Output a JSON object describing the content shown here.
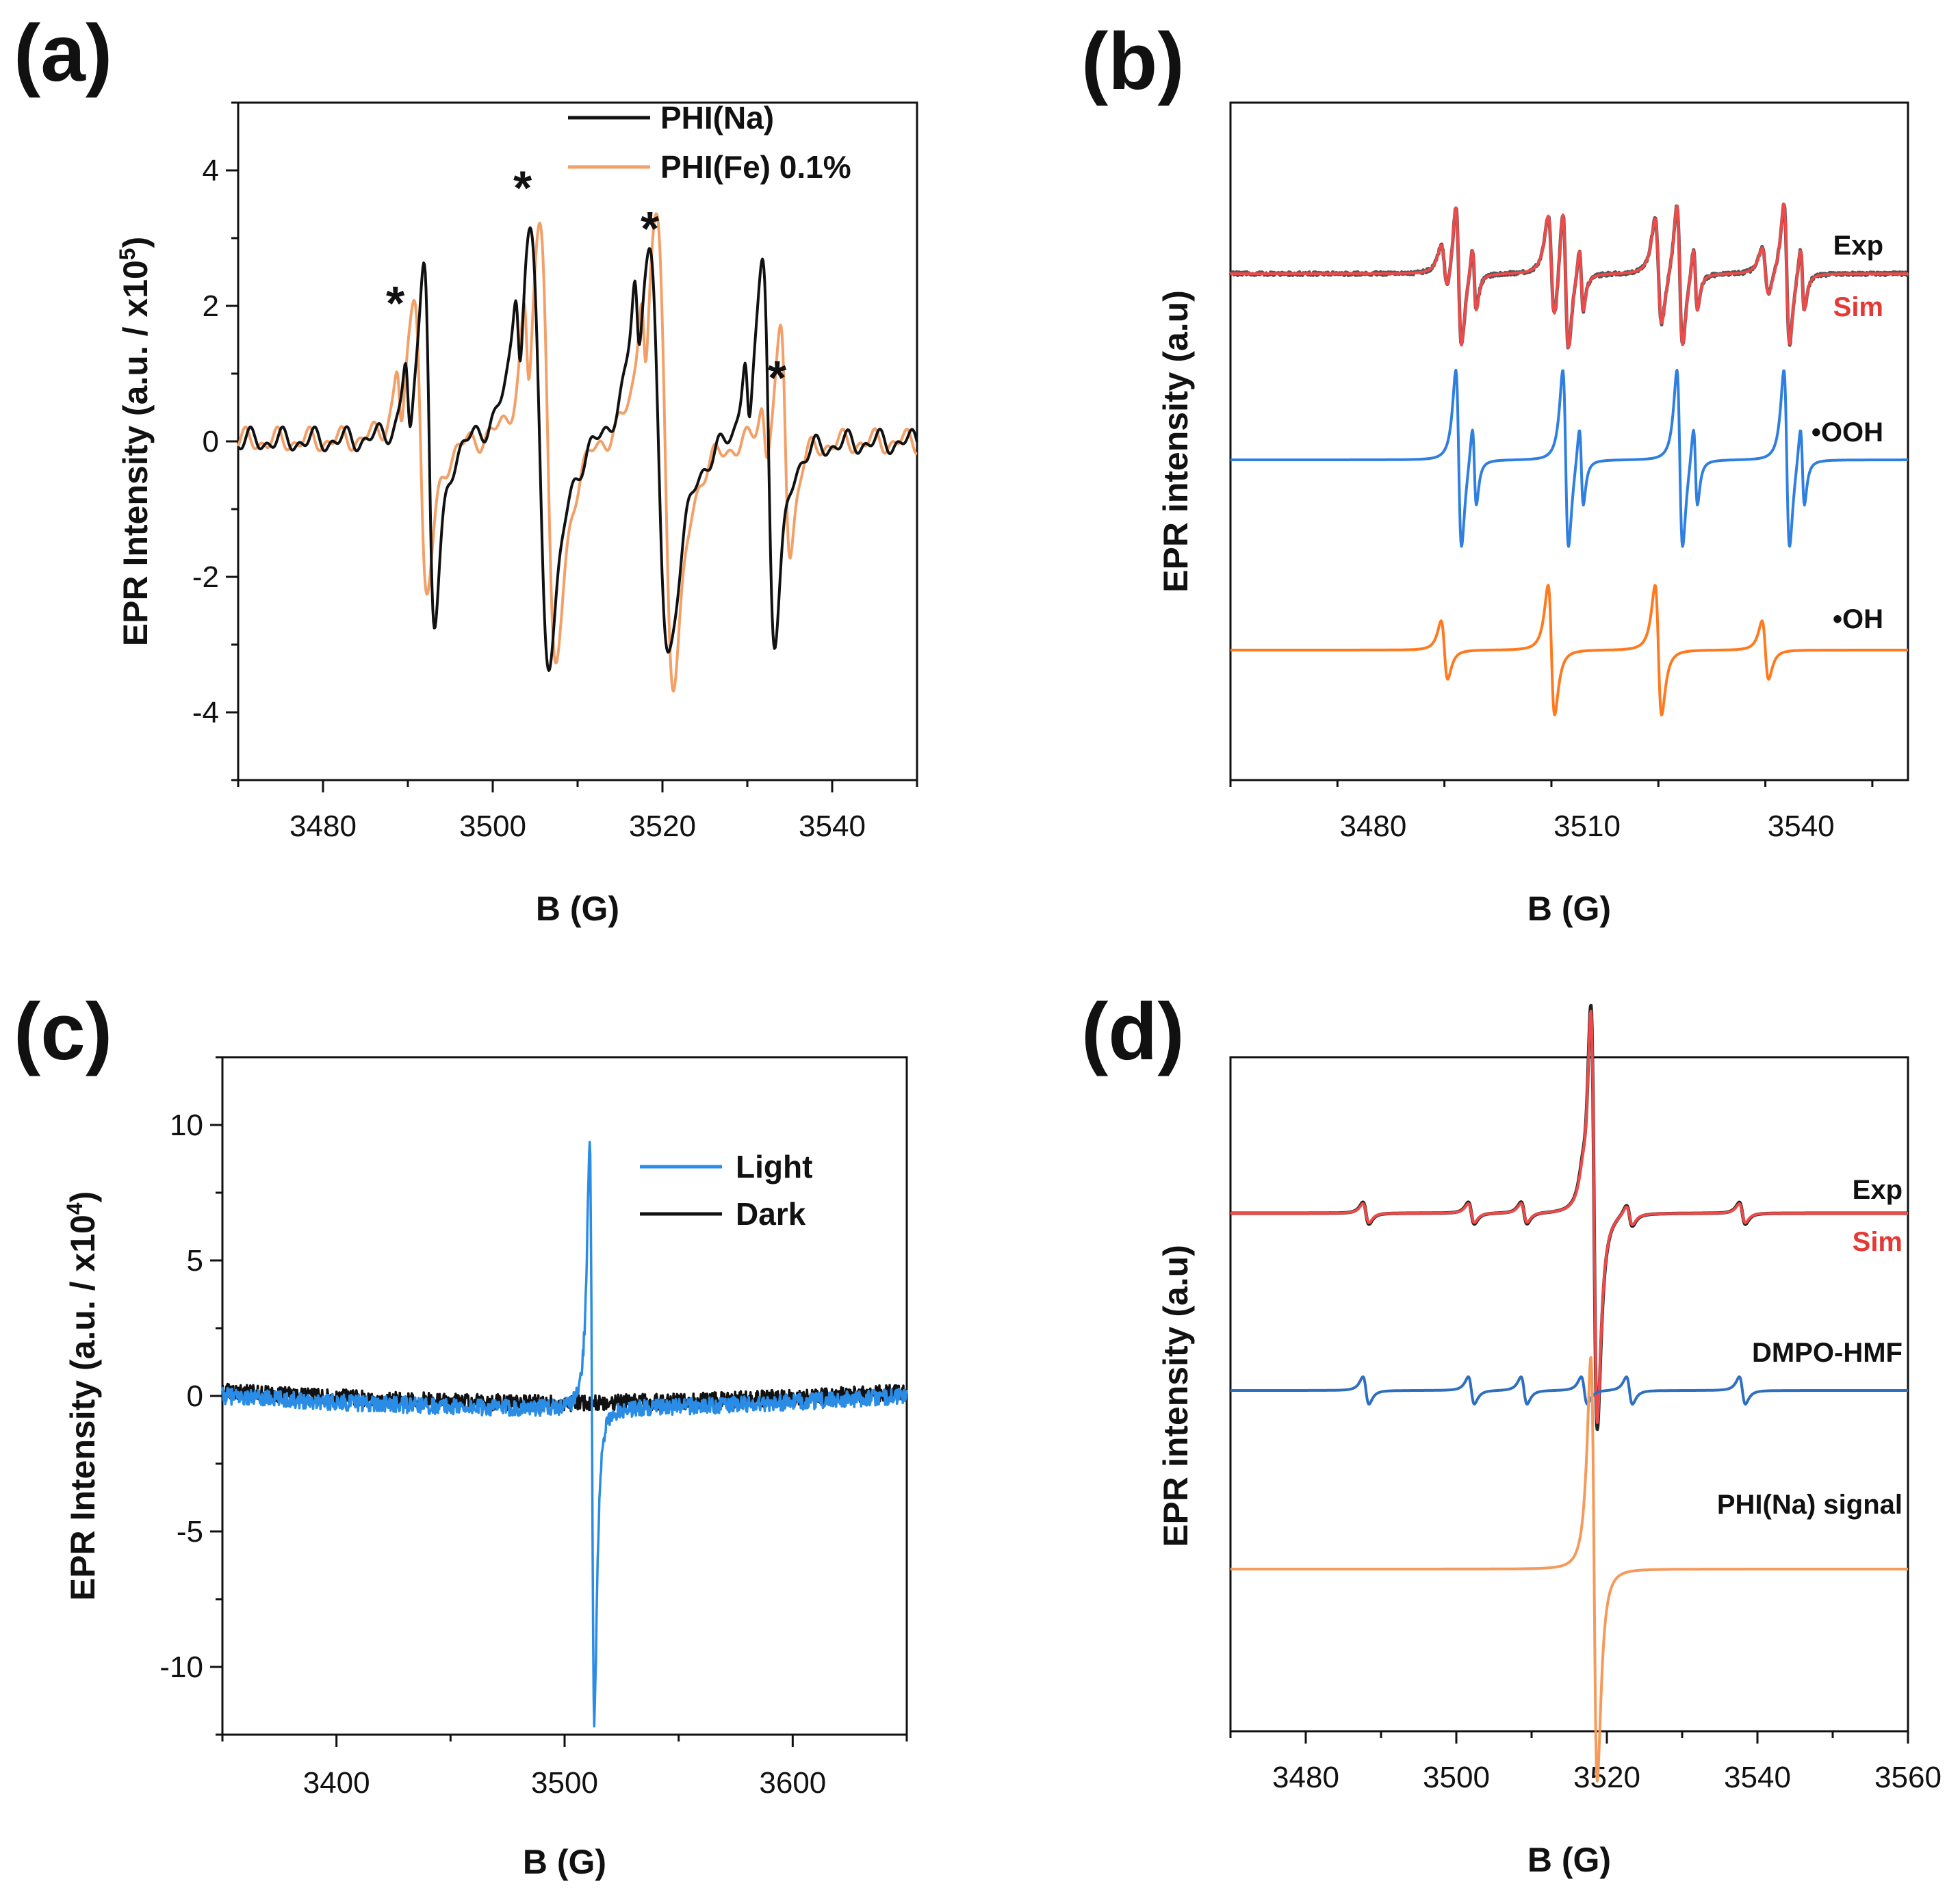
{
  "chart_data": [
    {
      "panel": "(a)",
      "type": "line",
      "xlabel": "B (G)",
      "ylabel_prefix": "EPR Intensity (a.u. / x10",
      "ylabel_exp": "5",
      "ylabel_suffix": ")",
      "xlim": [
        3470,
        3550
      ],
      "ylim": [
        -5,
        5
      ],
      "xticks": [
        3480,
        3500,
        3520,
        3540
      ],
      "yticks": [
        -4,
        -2,
        0,
        2,
        4
      ],
      "legend": "top-right",
      "markers": [
        "*",
        "*",
        "*",
        "*"
      ],
      "marker_fields": [
        3489,
        3504,
        3519,
        3534
      ],
      "series": [
        {
          "name": "PHI(Na)",
          "color": "#111111",
          "peaks": [
            {
              "c": 3492.5,
              "a": 2.8,
              "w": 0.7
            },
            {
              "c": 3505.5,
              "a": 3.2,
              "w": 1.2
            },
            {
              "c": 3519.5,
              "a": 3.1,
              "w": 1.3
            },
            {
              "c": 3532.5,
              "a": 2.9,
              "w": 0.8
            }
          ]
        },
        {
          "name": "PHI(Fe) 0.1%",
          "color": "#f2a068",
          "peaks": [
            {
              "c": 3491.5,
              "a": 2.3,
              "w": 0.8
            },
            {
              "c": 3506.5,
              "a": 3.4,
              "w": 1.0
            },
            {
              "c": 3520.3,
              "a": 3.5,
              "w": 1.1
            },
            {
              "c": 3534.5,
              "a": 1.6,
              "w": 0.6
            }
          ]
        }
      ]
    },
    {
      "panel": "(b)",
      "type": "line",
      "xlabel": "B (G)",
      "ylabel": "EPR intensity (a.u)",
      "xlim": [
        3460,
        3555
      ],
      "xticks": [
        3480,
        3510,
        3540
      ],
      "series": [
        {
          "name": "Exp",
          "label_color": "#111111",
          "color": "#555555"
        },
        {
          "name": "Sim",
          "label_color": "#e53935",
          "color": "#ef4a4a"
        },
        {
          "name": "•OOH",
          "label_color": "#111111",
          "color": "#2f7fe0"
        },
        {
          "name": "•OH",
          "label_color": "#111111",
          "color": "#ff7a1f"
        }
      ]
    },
    {
      "panel": "(c)",
      "type": "line",
      "xlabel": "B (G)",
      "ylabel_prefix": "EPR Intensity (a.u. / x10",
      "ylabel_exp": "4",
      "ylabel_suffix": ")",
      "xlim": [
        3350,
        3650
      ],
      "ylim": [
        -12.5,
        12.5
      ],
      "xticks": [
        3400,
        3500,
        3600
      ],
      "yticks": [
        -10,
        -5,
        0,
        5,
        10
      ],
      "legend": "top-right",
      "series": [
        {
          "name": "Light",
          "color": "#2b8ce6",
          "peak_field": 3512,
          "pos_peak": 9.8,
          "neg_peak": -11.5
        },
        {
          "name": "Dark",
          "color": "#111111"
        }
      ]
    },
    {
      "panel": "(d)",
      "type": "line",
      "xlabel": "B (G)",
      "ylabel": "EPR intensity (a.u)",
      "xlim": [
        3470,
        3560
      ],
      "xticks": [
        3480,
        3500,
        3520,
        3540,
        3560
      ],
      "series": [
        {
          "name": "Exp",
          "label_color": "#111111",
          "color": "#222222"
        },
        {
          "name": "Sim",
          "label_color": "#e53935",
          "color": "#ef4a4a"
        },
        {
          "name": "DMPO-HMF",
          "label_color": "#111111",
          "color": "#2f6fc0"
        },
        {
          "name": "PHI(Na) signal",
          "label_color": "#111111",
          "color": "#f59a5a"
        }
      ]
    }
  ]
}
